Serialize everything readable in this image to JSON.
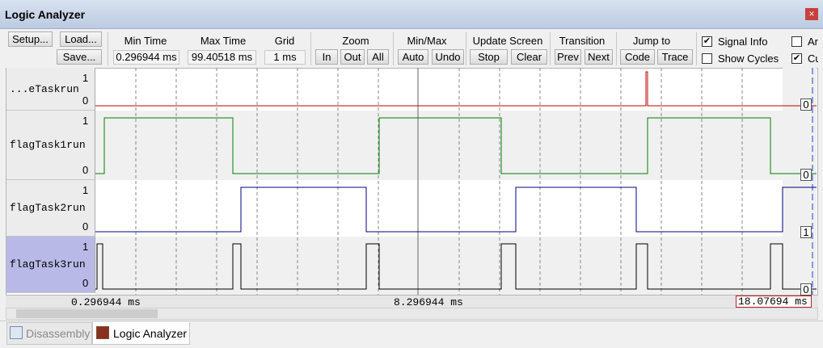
{
  "window": {
    "title": "Logic Analyzer",
    "close": "×"
  },
  "toolbar": {
    "file_buttons": [
      "Setup...",
      "Load...",
      "Save..."
    ],
    "fields": [
      {
        "label": "Min Time",
        "value": "0.296944 ms"
      },
      {
        "label": "Max Time",
        "value": "99.40518 ms"
      },
      {
        "label": "Grid",
        "value": "1 ms"
      }
    ],
    "groups": [
      {
        "label": "Zoom",
        "buttons": [
          "In",
          "Out",
          "All"
        ]
      },
      {
        "label": "Min/Max",
        "buttons": [
          "Auto",
          "Undo"
        ]
      },
      {
        "label": "Update Screen",
        "buttons": [
          "Stop",
          "Clear"
        ]
      },
      {
        "label": "Transition",
        "buttons": [
          "Prev",
          "Next"
        ]
      },
      {
        "label": "Jump to",
        "buttons": [
          "Code",
          "Trace"
        ]
      }
    ],
    "checkboxes": [
      {
        "label": "Signal Info",
        "checked": true
      },
      {
        "label": "Show Cycles",
        "checked": false
      },
      {
        "label": "Ar",
        "checked": false
      },
      {
        "label": "Cu",
        "checked": true
      }
    ]
  },
  "signals": [
    {
      "name": "...eTaskrun",
      "high": 1,
      "low": 0,
      "current": 0
    },
    {
      "name": "flagTask1run",
      "high": 1,
      "low": 0,
      "current": 0
    },
    {
      "name": "flagTask2run",
      "high": 1,
      "low": 0,
      "current": 1
    },
    {
      "name": "flagTask3run",
      "high": 1,
      "low": 0,
      "current": 0
    }
  ],
  "time_axis": {
    "left": "0.296944 ms",
    "center": "8.296944 ms",
    "cursor": "18.07694 ms"
  },
  "tabs": [
    "Disassembly",
    "Logic Analyzer"
  ]
}
